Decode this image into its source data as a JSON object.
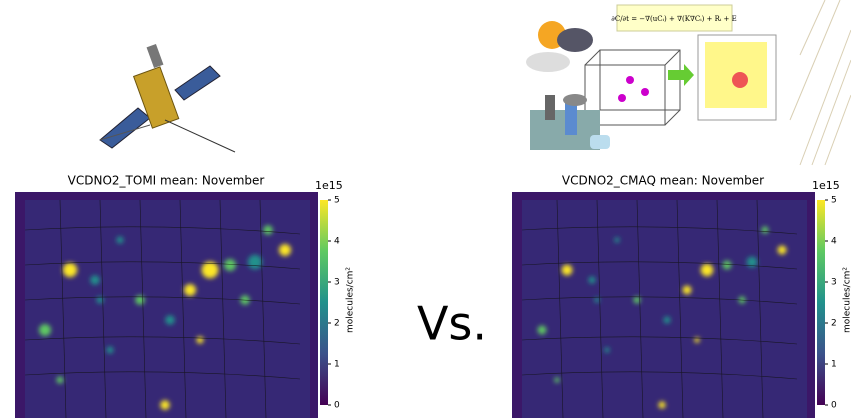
{
  "equation": "∂C/∂t = −∇(uCᵢ) + ∇(K∇Cᵢ) + Rᵢ + E",
  "separator": "Vs.",
  "panels": [
    {
      "title": "VCDNO2_TOMI mean: November",
      "exponent": "1e15",
      "unit": "molecules/cm²",
      "ticks": [
        0,
        1,
        2,
        3,
        4,
        5
      ],
      "lim": [
        0,
        5
      ]
    },
    {
      "title": "VCDNO2_CMAQ mean: November",
      "exponent": "1e15",
      "unit": "molecules/cm²",
      "ticks": [
        0,
        1,
        2,
        3,
        4,
        5
      ],
      "lim": [
        0,
        5
      ]
    }
  ]
}
